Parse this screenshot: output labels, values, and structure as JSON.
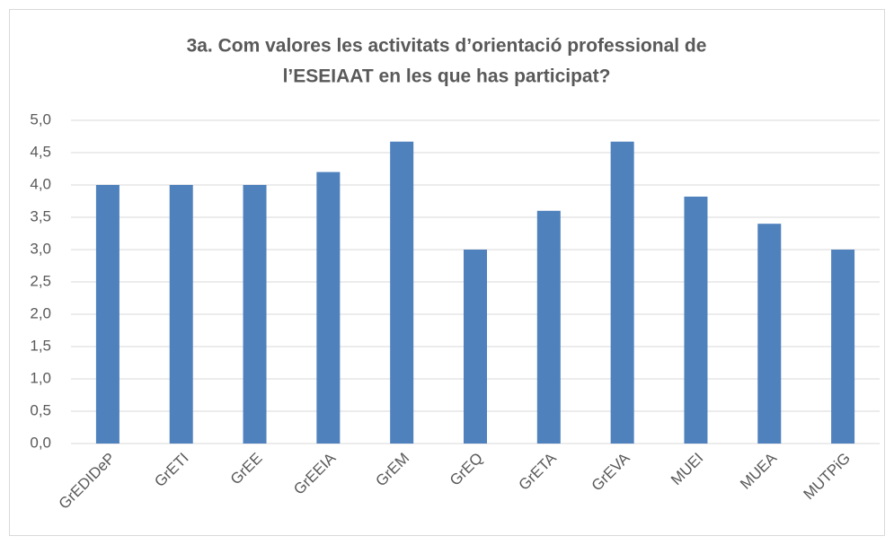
{
  "chart_data": {
    "type": "bar",
    "title": [
      "3a. Com valores les activitats d’orientació professional de",
      "l’ESEIAAT en les que has participat?"
    ],
    "categories": [
      "GrEDIDeP",
      "GrETI",
      "GrEE",
      "GrEEIA",
      "GrEM",
      "GrEQ",
      "GrETA",
      "GrEVA",
      "MUEI",
      "MUEA",
      "MUTPiG"
    ],
    "values": [
      4.0,
      4.0,
      4.0,
      4.2,
      4.67,
      3.0,
      3.6,
      4.67,
      3.82,
      3.4,
      3.0
    ],
    "color": "#4f81bd",
    "ylim": [
      0,
      5
    ],
    "yticks": [
      {
        "value": 0,
        "label": "0,0"
      },
      {
        "value": 0.5,
        "label": "0,5"
      },
      {
        "value": 1,
        "label": "1,0"
      },
      {
        "value": 1.5,
        "label": "1,5"
      },
      {
        "value": 2,
        "label": "2,0"
      },
      {
        "value": 2.5,
        "label": "2,5"
      },
      {
        "value": 3,
        "label": "3,0"
      },
      {
        "value": 3.5,
        "label": "3,5"
      },
      {
        "value": 4,
        "label": "4,0"
      },
      {
        "value": 4.5,
        "label": "4,5"
      },
      {
        "value": 5,
        "label": "5,0"
      }
    ],
    "grid": true
  }
}
